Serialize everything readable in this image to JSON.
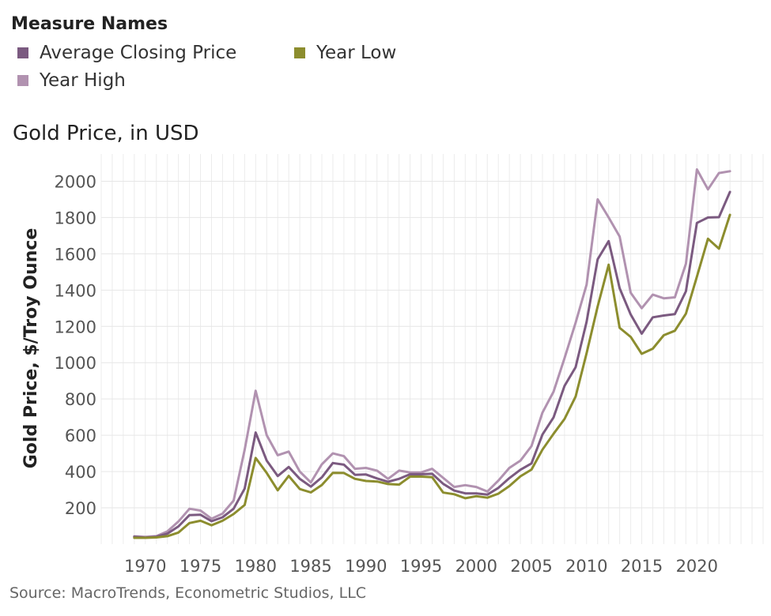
{
  "legend": {
    "title": "Measure Names",
    "items": [
      {
        "label": "Average Closing Price",
        "color": "#7b5a80"
      },
      {
        "label": "Year Low",
        "color": "#8c8d2e"
      },
      {
        "label": "Year High",
        "color": "#b192b0"
      }
    ]
  },
  "source": "Source: MacroTrends, Econometric Studios, LLC",
  "chart_data": {
    "type": "line",
    "title": "Gold Price, in USD",
    "xlabel": "",
    "ylabel": "Gold Price, $/Troy Ounce",
    "xlim": [
      1966,
      2026
    ],
    "ylim": [
      0,
      2150
    ],
    "xticks": [
      1970,
      1975,
      1980,
      1985,
      1990,
      1995,
      2000,
      2005,
      2010,
      2015,
      2020
    ],
    "yticks": [
      200,
      400,
      600,
      800,
      1000,
      1200,
      1400,
      1600,
      1800,
      2000
    ],
    "grid": true,
    "legend_position": "top-left",
    "x": [
      1969,
      1970,
      1971,
      1972,
      1973,
      1974,
      1975,
      1976,
      1977,
      1978,
      1979,
      1980,
      1981,
      1982,
      1983,
      1984,
      1985,
      1986,
      1987,
      1988,
      1989,
      1990,
      1991,
      1992,
      1993,
      1994,
      1995,
      1996,
      1997,
      1998,
      1999,
      2000,
      2001,
      2002,
      2003,
      2004,
      2005,
      2006,
      2007,
      2008,
      2009,
      2010,
      2011,
      2012,
      2013,
      2014,
      2015,
      2016,
      2017,
      2018,
      2019,
      2020,
      2021,
      2022,
      2023
    ],
    "series": [
      {
        "name": "Year High",
        "color": "#b192b0",
        "values": [
          43,
          40,
          44,
          70,
          125,
          195,
          185,
          140,
          168,
          240,
          520,
          845,
          600,
          490,
          510,
          400,
          340,
          440,
          500,
          485,
          415,
          420,
          405,
          360,
          405,
          395,
          395,
          415,
          365,
          315,
          325,
          315,
          290,
          350,
          420,
          460,
          540,
          725,
          840,
          1025,
          1220,
          1430,
          1900,
          1800,
          1695,
          1385,
          1300,
          1375,
          1355,
          1360,
          1545,
          2065,
          1955,
          2045,
          2055
        ]
      },
      {
        "name": "Average Closing Price",
        "color": "#7b5a80",
        "values": [
          41,
          36,
          41,
          58,
          98,
          160,
          162,
          126,
          148,
          195,
          306,
          615,
          460,
          375,
          425,
          360,
          317,
          368,
          447,
          438,
          382,
          384,
          362,
          344,
          360,
          385,
          385,
          388,
          332,
          295,
          280,
          280,
          273,
          310,
          364,
          410,
          445,
          604,
          698,
          872,
          975,
          1225,
          1570,
          1670,
          1410,
          1265,
          1160,
          1250,
          1260,
          1268,
          1393,
          1770,
          1800,
          1802,
          1941
        ]
      },
      {
        "name": "Year Low",
        "color": "#8c8d2e",
        "values": [
          35,
          35,
          37,
          44,
          64,
          116,
          129,
          104,
          129,
          166,
          216,
          475,
          392,
          297,
          376,
          304,
          285,
          326,
          393,
          392,
          360,
          348,
          345,
          331,
          328,
          372,
          372,
          369,
          284,
          275,
          253,
          264,
          256,
          278,
          320,
          374,
          411,
          521,
          608,
          690,
          813,
          1052,
          1310,
          1540,
          1192,
          1142,
          1049,
          1077,
          1151,
          1176,
          1270,
          1474,
          1683,
          1628,
          1815
        ]
      }
    ]
  }
}
